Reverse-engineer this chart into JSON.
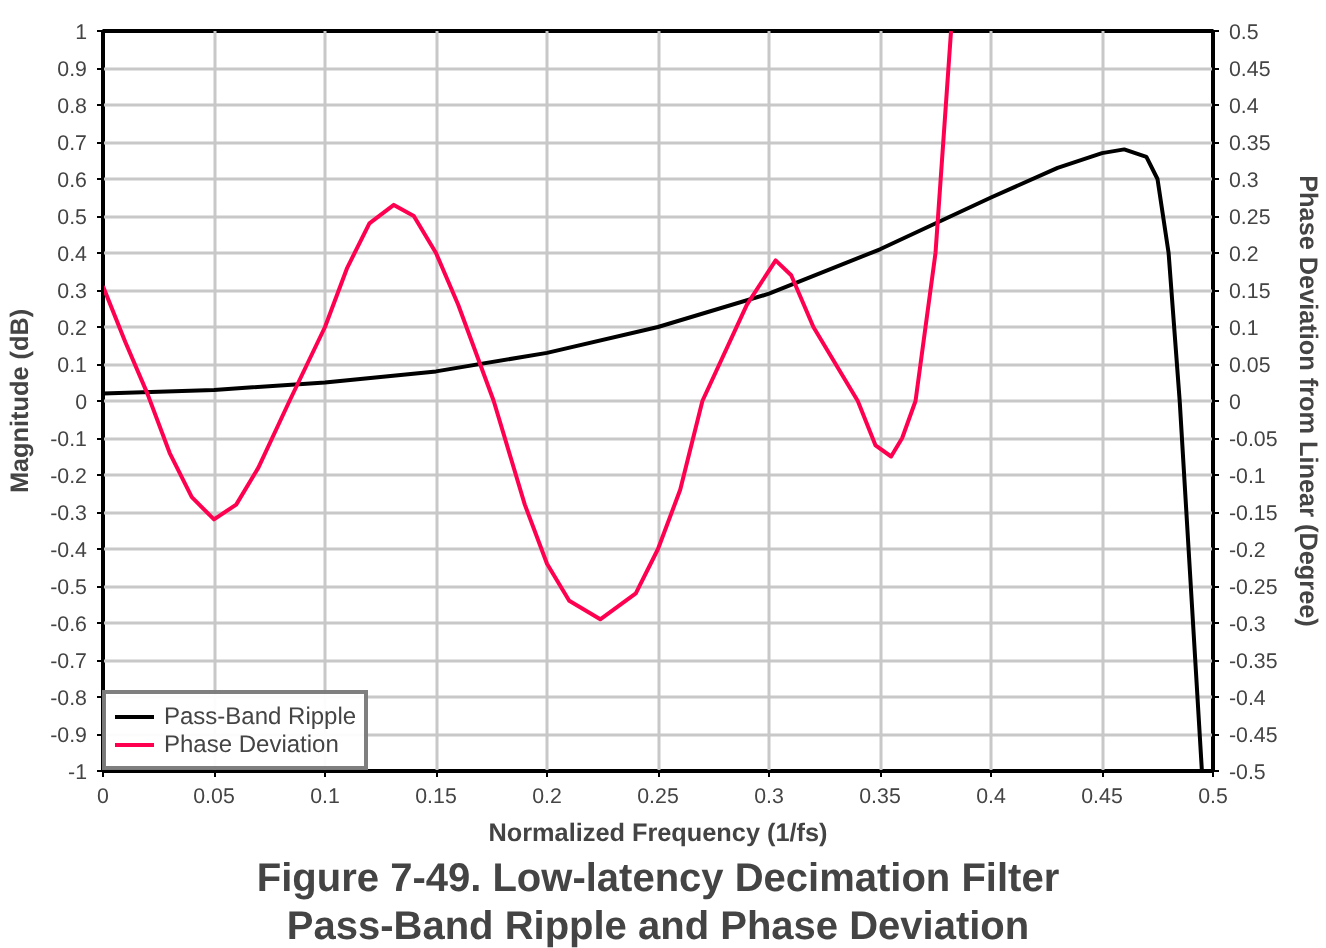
{
  "chart_data": {
    "type": "line",
    "title": "Figure 7-49. Low-latency Decimation Filter Pass-Band Ripple and Phase Deviation",
    "xlabel": "Normalized Frequency (1/fs)",
    "ylabel": "Magnitude (dB)",
    "y2label": "Phase Deviation from Linear (Degree)",
    "xlim": [
      0,
      0.5
    ],
    "xticks": [
      0,
      0.05,
      0.1,
      0.15,
      0.2,
      0.25,
      0.3,
      0.35,
      0.4,
      0.45,
      0.5
    ],
    "ylim": [
      -1,
      1
    ],
    "yticks": [
      -1,
      -0.9,
      -0.8,
      -0.7,
      -0.6,
      -0.5,
      -0.4,
      -0.3,
      -0.2,
      -0.1,
      0,
      0.1,
      0.2,
      0.3,
      0.4,
      0.5,
      0.6,
      0.7,
      0.8,
      0.9,
      1
    ],
    "y2lim": [
      -0.5,
      0.5
    ],
    "y2ticks": [
      -0.5,
      -0.45,
      -0.4,
      -0.35,
      -0.3,
      -0.25,
      -0.2,
      -0.15,
      -0.1,
      -0.05,
      0,
      0.05,
      0.1,
      0.15,
      0.2,
      0.25,
      0.3,
      0.35,
      0.4,
      0.45,
      0.5
    ],
    "grid": true,
    "legend": "bottom left",
    "series": [
      {
        "name": "Pass-Band Ripple",
        "color": "#000000",
        "x": [
          0,
          0.05,
          0.1,
          0.15,
          0.2,
          0.25,
          0.3,
          0.35,
          0.4,
          0.43,
          0.45,
          0.46,
          0.47,
          0.475,
          0.48,
          0.485,
          0.49,
          0.495
        ],
        "values": [
          0.02,
          0.03,
          0.05,
          0.08,
          0.13,
          0.2,
          0.29,
          0.41,
          0.55,
          0.63,
          0.67,
          0.68,
          0.66,
          0.6,
          0.4,
          0.0,
          -0.5,
          -1
        ]
      },
      {
        "name": "Phase Deviation",
        "color": "#ff0050",
        "axis": "y2",
        "x": [
          0,
          0.01,
          0.02,
          0.03,
          0.04,
          0.05,
          0.06,
          0.07,
          0.084,
          0.1,
          0.11,
          0.12,
          0.131,
          0.14,
          0.15,
          0.16,
          0.176,
          0.19,
          0.2,
          0.21,
          0.224,
          0.24,
          0.25,
          0.26,
          0.27,
          0.29,
          0.303,
          0.31,
          0.32,
          0.34,
          0.348,
          0.355,
          0.36,
          0.366,
          0.375,
          0.382
        ],
        "values": [
          0.155,
          0.08,
          0.01,
          -0.07,
          -0.13,
          -0.16,
          -0.14,
          -0.09,
          0,
          0.1,
          0.18,
          0.24,
          0.265,
          0.25,
          0.2,
          0.13,
          0,
          -0.14,
          -0.22,
          -0.27,
          -0.295,
          -0.26,
          -0.2,
          -0.12,
          0,
          0.13,
          0.19,
          0.17,
          0.1,
          0,
          -0.06,
          -0.075,
          -0.05,
          0,
          0.2,
          0.5
        ]
      }
    ]
  }
}
